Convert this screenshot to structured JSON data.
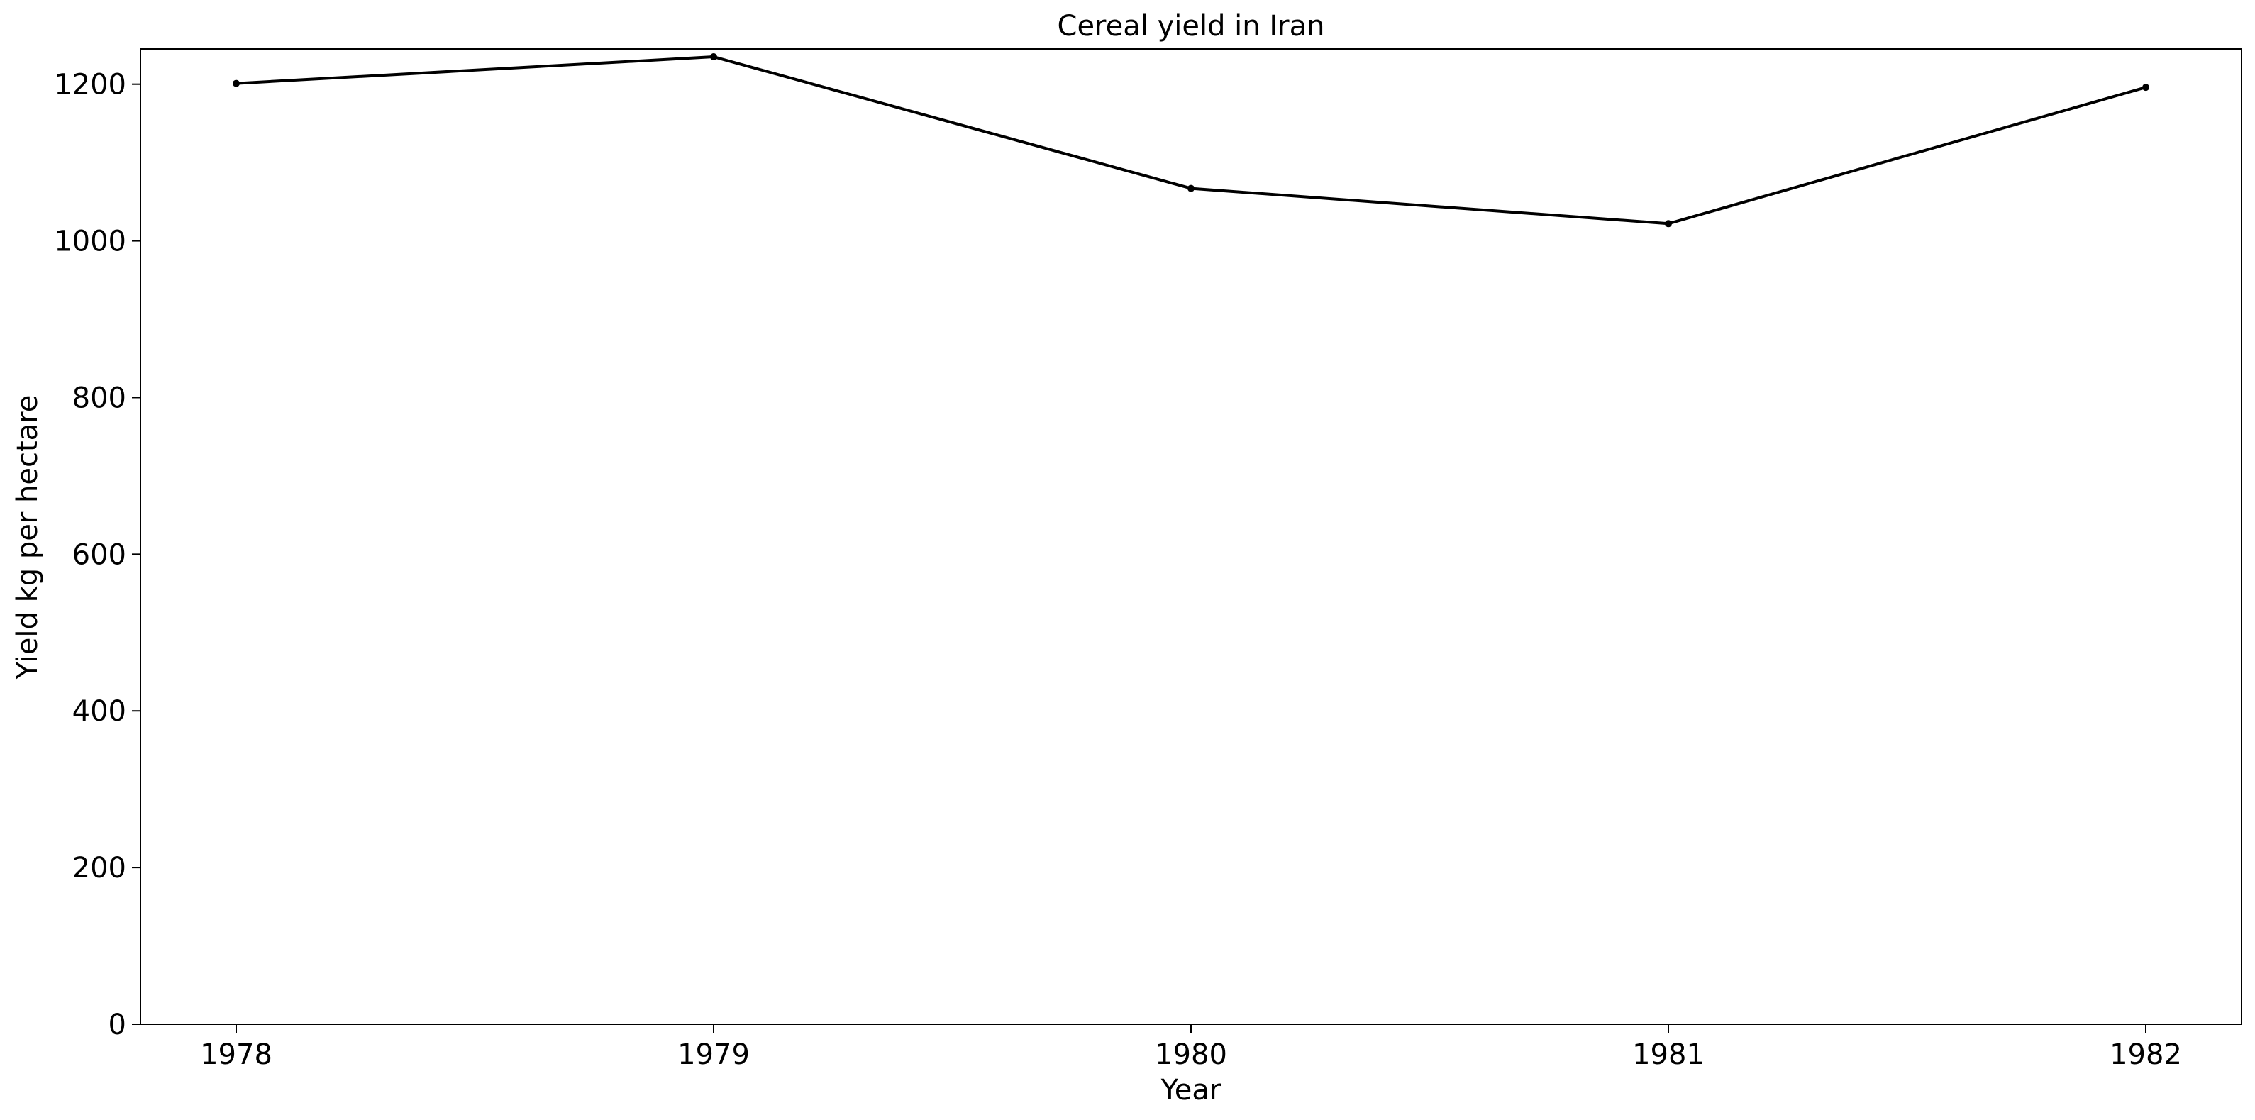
{
  "chart_data": {
    "type": "line",
    "title": "Cereal yield in Iran",
    "xlabel": "Year",
    "ylabel": "Yield kg per hectare",
    "x": [
      "1978",
      "1979",
      "1980",
      "1981",
      "1982"
    ],
    "series": [
      {
        "values": [
          1201,
          1235,
          1067,
          1022,
          1196
        ]
      }
    ],
    "ylim": [
      0,
      1245
    ],
    "yticks": [
      0,
      200,
      400,
      600,
      800,
      1000,
      1200
    ],
    "grid": false,
    "legend": "none",
    "colors": {
      "line": "#000000",
      "marker": "#000000",
      "background": "#ffffff"
    }
  }
}
